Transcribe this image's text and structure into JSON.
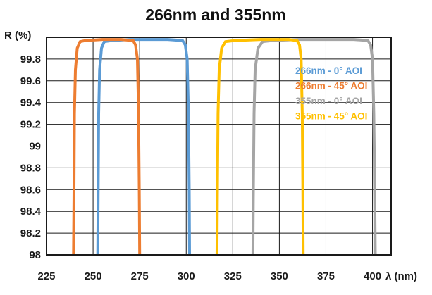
{
  "chart_data": {
    "type": "line",
    "title": "266nm and 355nm",
    "xlabel": "λ (nm)",
    "ylabel": "R (%)",
    "xlim": [
      225,
      410
    ],
    "ylim": [
      98,
      100
    ],
    "x_ticks": [
      225,
      250,
      275,
      300,
      325,
      350,
      375,
      400
    ],
    "y_ticks": [
      98,
      98.2,
      98.4,
      98.6,
      98.8,
      99,
      99.2,
      99.4,
      99.6,
      99.8
    ],
    "y_tick_labels": [
      "98",
      "98.2",
      "98.4",
      "98.6",
      "98.8",
      "99",
      "99.2",
      "99.4",
      "99.6",
      "99.8"
    ],
    "grid": true,
    "legend_position": "right",
    "series": [
      {
        "name": "266nm - 0° AOI",
        "color": "#5b9bd5",
        "x": [
          252.5,
          252.7,
          253.0,
          253.5,
          254.5,
          256,
          260,
          270,
          280,
          290,
          298,
          299.5,
          300.5,
          301.2,
          301.6,
          301.8
        ],
        "y": [
          98,
          98.5,
          99.3,
          99.7,
          99.9,
          99.96,
          99.97,
          99.98,
          99.98,
          99.98,
          99.97,
          99.93,
          99.8,
          99.3,
          98.6,
          98
        ]
      },
      {
        "name": "266nm - 45° AOI",
        "color": "#ed7d31",
        "x": [
          239.5,
          239.7,
          240.0,
          240.5,
          241.5,
          243,
          246,
          255,
          265,
          271.5,
          272.8,
          273.8,
          274.4,
          274.8,
          275.0
        ],
        "y": [
          98,
          98.5,
          99.3,
          99.7,
          99.9,
          99.96,
          99.97,
          99.98,
          99.98,
          99.97,
          99.93,
          99.8,
          99.3,
          98.6,
          98
        ]
      },
      {
        "name": "355nm - 0° AOI",
        "color": "#a5a5a5",
        "x": [
          335.8,
          336.0,
          336.4,
          337.0,
          338.5,
          341,
          346,
          360,
          375,
          390,
          397.5,
          399.0,
          400.0,
          400.7,
          401.2,
          401.5
        ],
        "y": [
          98,
          98.5,
          99.3,
          99.7,
          99.9,
          99.96,
          99.97,
          99.98,
          99.98,
          99.98,
          99.97,
          99.93,
          99.8,
          99.3,
          98.6,
          98
        ]
      },
      {
        "name": "355nm - 45° AOI",
        "color": "#ffc000",
        "x": [
          316.5,
          316.7,
          317.1,
          317.7,
          319,
          321,
          326,
          340,
          355,
          359.5,
          360.8,
          361.7,
          362.3,
          362.6,
          362.8
        ],
        "y": [
          98,
          98.5,
          99.3,
          99.7,
          99.9,
          99.96,
          99.97,
          99.98,
          99.98,
          99.97,
          99.93,
          99.8,
          99.3,
          98.6,
          98
        ]
      }
    ]
  }
}
